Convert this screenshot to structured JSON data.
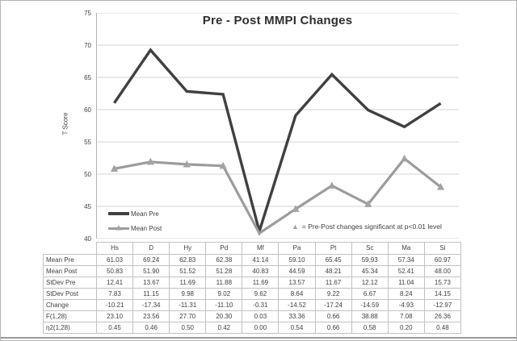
{
  "figure_type": "statistical line chart with data table",
  "colors": {
    "pre_line": "#404040",
    "post_line": "#9c9c9c",
    "marker": "#a3a3a3",
    "gridline": "#d6d6d6",
    "axis": "#b3b3b3",
    "table_border": "#c2c2c2",
    "frame": "#b5b5b5",
    "text": "#3f3f3f"
  },
  "annotation": {
    "marker": "▲",
    "text": "= Pre-Post changes significant at p<0.01 level"
  },
  "chart_data": {
    "type": "line",
    "title": "Pre - Post MMPI Changes",
    "xlabel": "",
    "ylabel": "T Score",
    "ylim": [
      40,
      75
    ],
    "ytick_step": 5,
    "yticks": [
      75,
      70,
      65,
      60,
      55,
      50,
      45,
      40
    ],
    "grid": true,
    "legend_position": "bottom-left-inside",
    "categories": [
      "Hs",
      "D",
      "Hy",
      "Pd",
      "Mf",
      "Pa",
      "Pt",
      "Sc",
      "Ma",
      "Si"
    ],
    "series": [
      {
        "name": "Mean Pre",
        "values": [
          61.03,
          69.24,
          62.83,
          62.38,
          41.14,
          59.1,
          65.45,
          59.93,
          57.34,
          60.97
        ]
      },
      {
        "name": "Mean Post",
        "values": [
          50.83,
          51.9,
          51.52,
          51.28,
          40.83,
          44.59,
          48.21,
          45.34,
          52.41,
          48.0
        ],
        "markers": [
          true,
          true,
          true,
          true,
          false,
          true,
          true,
          true,
          true,
          true
        ],
        "marker_meaning": "significant pre-post change at p<0.01"
      }
    ]
  },
  "table": {
    "columns": [
      "Hs",
      "D",
      "Hy",
      "Pd",
      "Mf",
      "Pa",
      "Pt",
      "Sc",
      "Ma",
      "Si"
    ],
    "rows": [
      {
        "label": "Mean Pre",
        "values": [
          "61.03",
          "69.24",
          "62.83",
          "62.38",
          "41.14",
          "59.10",
          "65.45",
          "59.93",
          "57.34",
          "60.97"
        ]
      },
      {
        "label": "Mean Post",
        "values": [
          "50.83",
          "51.90",
          "51.52",
          "51.28",
          "40.83",
          "44.59",
          "48.21",
          "45.34",
          "52.41",
          "48.00"
        ]
      },
      {
        "label": "StDev Pre",
        "values": [
          "12.41",
          "13.67",
          "11.69",
          "11.88",
          "11.69",
          "13.57",
          "11.67",
          "12.12",
          "11.04",
          "15.73"
        ]
      },
      {
        "label": "StDev Post",
        "values": [
          "7.83",
          "11.15",
          "9.98",
          "9.02",
          "9.62",
          "8.64",
          "9.22",
          "6.67",
          "8.24",
          "14.15"
        ]
      },
      {
        "label": "Change",
        "values": [
          "-10.21",
          "-17.34",
          "-11.31",
          "-11.10",
          "-0.31",
          "-14.52",
          "-17.24",
          "-14.59",
          "-4.93",
          "-12.97"
        ]
      },
      {
        "label": "F(1,28)",
        "values": [
          "23.10",
          "23.56",
          "27.70",
          "20.30",
          "0.03",
          "33.36",
          "0.66",
          "38.88",
          "7.08",
          "26.36"
        ]
      },
      {
        "label": "η2(1,28)",
        "values": [
          "0.45",
          "0.46",
          "0.50",
          "0.42",
          "0.00",
          "0.54",
          "0.66",
          "0.58",
          "0.20",
          "0.48"
        ]
      }
    ]
  }
}
